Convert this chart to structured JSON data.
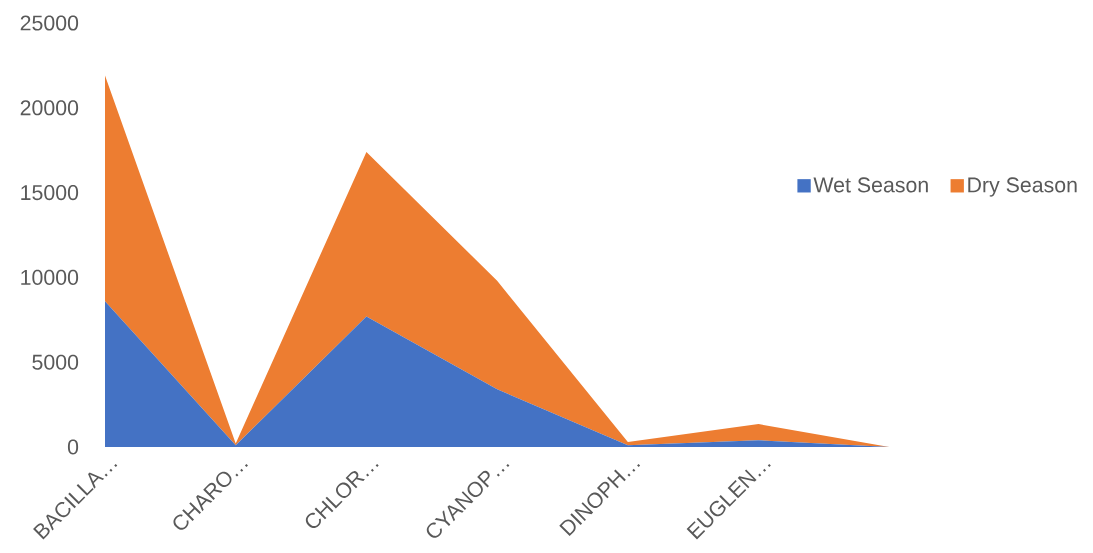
{
  "chart_data": {
    "type": "area",
    "stacked": true,
    "categories": [
      "BACILLA…",
      "CHARO…",
      "CHLOR…",
      "CYANOP…",
      "DINOPH…",
      "EUGLEN…",
      null,
      null
    ],
    "series": [
      {
        "name": "Wet Season",
        "color": "#4472c4",
        "values": [
          8600,
          100,
          7700,
          3400,
          100,
          400,
          0,
          0
        ]
      },
      {
        "name": "Dry Season",
        "color": "#ed7d31",
        "values": [
          13300,
          100,
          9700,
          6400,
          200,
          950,
          0,
          0
        ]
      }
    ],
    "ylim": [
      0,
      25000
    ],
    "yticks": [
      0,
      5000,
      10000,
      15000,
      20000,
      25000
    ],
    "legend": "right"
  }
}
